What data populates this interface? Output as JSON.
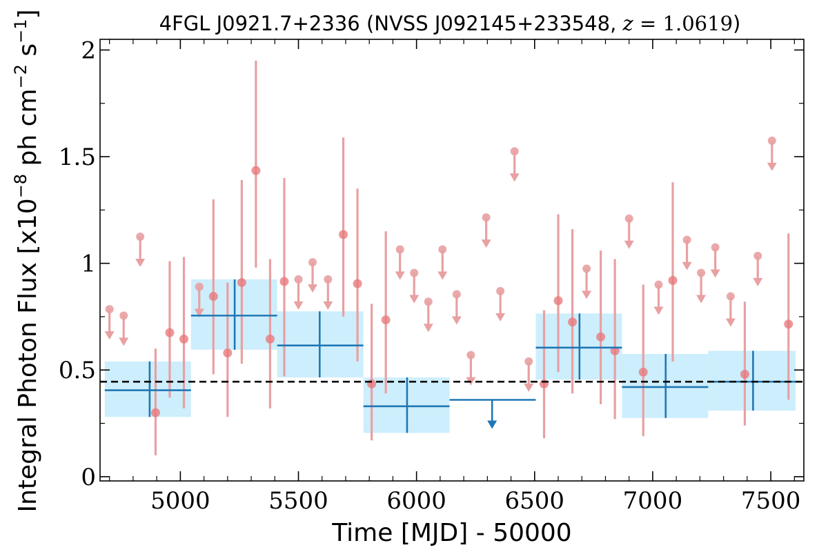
{
  "chart_data": {
    "type": "scatter",
    "title": {
      "main": "4FGL J0921.7+2336 (NVSS J092145+233548, ",
      "z_var": "z",
      "z_eq": " = 1.0619",
      "close": ")"
    },
    "xlabel": "Time [MJD] - 50000",
    "ylabel": {
      "prefix": "Integral Photon Flux [x10",
      "exp1": "−8",
      "mid": " ph cm",
      "exp2": "−2",
      "mid2": " s",
      "exp3": "−1",
      "suffix": "]"
    },
    "xlim": [
      4660,
      7640
    ],
    "ylim": [
      -0.02,
      2.05
    ],
    "x_ticks": [
      5000,
      5500,
      6000,
      6500,
      7000,
      7500
    ],
    "x_tick_labels": [
      "5000",
      "5500",
      "6000",
      "6500",
      "7000",
      "7500"
    ],
    "y_ticks": [
      0,
      0.5,
      1,
      1.5,
      2
    ],
    "y_tick_labels": [
      "0",
      "0.5",
      "1",
      "1.5",
      "2"
    ],
    "grid": false,
    "legend": "none",
    "mean_flux": 0.445,
    "colors": {
      "fine": "#e8787b",
      "fine_error": "#e8a0a2",
      "coarse": "#1f77b4",
      "coarse_band": "#cdeefc",
      "mean_line": "#000000"
    },
    "fine_bins": {
      "detections": [
        {
          "x": 4895,
          "y": 0.3,
          "lo": 0.1,
          "hi": 0.6
        },
        {
          "x": 4955,
          "y": 0.675,
          "lo": 0.37,
          "hi": 1.01
        },
        {
          "x": 5015,
          "y": 0.645,
          "lo": 0.32,
          "hi": 1.03
        },
        {
          "x": 5140,
          "y": 0.845,
          "lo": 0.48,
          "hi": 1.3
        },
        {
          "x": 5200,
          "y": 0.58,
          "lo": 0.28,
          "hi": 0.91
        },
        {
          "x": 5260,
          "y": 0.91,
          "lo": 0.53,
          "hi": 1.39
        },
        {
          "x": 5320,
          "y": 1.435,
          "lo": 0.98,
          "hi": 1.95
        },
        {
          "x": 5380,
          "y": 0.645,
          "lo": 0.32,
          "hi": 1.02
        },
        {
          "x": 5440,
          "y": 0.915,
          "lo": 0.47,
          "hi": 1.4
        },
        {
          "x": 5690,
          "y": 1.135,
          "lo": 0.75,
          "hi": 1.59
        },
        {
          "x": 5750,
          "y": 0.905,
          "lo": 0.54,
          "hi": 1.35
        },
        {
          "x": 5810,
          "y": 0.435,
          "lo": 0.17,
          "hi": 0.81
        },
        {
          "x": 5870,
          "y": 0.735,
          "lo": 0.39,
          "hi": 1.15
        },
        {
          "x": 6540,
          "y": 0.435,
          "lo": 0.18,
          "hi": 0.78
        },
        {
          "x": 6600,
          "y": 0.825,
          "lo": 0.49,
          "hi": 1.23
        },
        {
          "x": 6660,
          "y": 0.725,
          "lo": 0.39,
          "hi": 1.16
        },
        {
          "x": 6780,
          "y": 0.655,
          "lo": 0.34,
          "hi": 1.06
        },
        {
          "x": 6840,
          "y": 0.59,
          "lo": 0.27,
          "hi": 1.02
        },
        {
          "x": 6960,
          "y": 0.49,
          "lo": 0.19,
          "hi": 0.9
        },
        {
          "x": 7085,
          "y": 0.92,
          "lo": 0.54,
          "hi": 1.38
        },
        {
          "x": 7390,
          "y": 0.48,
          "lo": 0.24,
          "hi": 0.82
        },
        {
          "x": 7575,
          "y": 0.715,
          "lo": 0.36,
          "hi": 1.14
        }
      ],
      "upper_limits": [
        {
          "x": 4700,
          "y": 0.785
        },
        {
          "x": 4760,
          "y": 0.755
        },
        {
          "x": 4830,
          "y": 1.125
        },
        {
          "x": 5080,
          "y": 0.89
        },
        {
          "x": 5500,
          "y": 0.925
        },
        {
          "x": 5560,
          "y": 1.005
        },
        {
          "x": 5625,
          "y": 0.925
        },
        {
          "x": 5930,
          "y": 1.065
        },
        {
          "x": 5990,
          "y": 0.955
        },
        {
          "x": 6050,
          "y": 0.82
        },
        {
          "x": 6110,
          "y": 1.065
        },
        {
          "x": 6170,
          "y": 0.855
        },
        {
          "x": 6230,
          "y": 0.57
        },
        {
          "x": 6295,
          "y": 1.215
        },
        {
          "x": 6355,
          "y": 0.87
        },
        {
          "x": 6415,
          "y": 1.525
        },
        {
          "x": 6475,
          "y": 0.54
        },
        {
          "x": 6720,
          "y": 0.975
        },
        {
          "x": 6900,
          "y": 1.21
        },
        {
          "x": 7025,
          "y": 0.9
        },
        {
          "x": 7145,
          "y": 1.11
        },
        {
          "x": 7205,
          "y": 0.955
        },
        {
          "x": 7265,
          "y": 1.075
        },
        {
          "x": 7330,
          "y": 0.845
        },
        {
          "x": 7445,
          "y": 1.035
        },
        {
          "x": 7505,
          "y": 1.575
        }
      ]
    },
    "coarse_bins": {
      "detections": [
        {
          "x": 4870,
          "x0": 4680,
          "x1": 5045,
          "y": 0.405,
          "lo": 0.28,
          "hi": 0.54
        },
        {
          "x": 5230,
          "x0": 5045,
          "x1": 5410,
          "y": 0.755,
          "lo": 0.595,
          "hi": 0.925
        },
        {
          "x": 5590,
          "x0": 5410,
          "x1": 5775,
          "y": 0.615,
          "lo": 0.465,
          "hi": 0.775
        },
        {
          "x": 5960,
          "x0": 5775,
          "x1": 6140,
          "y": 0.33,
          "lo": 0.205,
          "hi": 0.465
        },
        {
          "x": 6690,
          "x0": 6505,
          "x1": 6870,
          "y": 0.605,
          "lo": 0.455,
          "hi": 0.765
        },
        {
          "x": 7055,
          "x0": 6870,
          "x1": 7235,
          "y": 0.42,
          "lo": 0.275,
          "hi": 0.575
        },
        {
          "x": 7425,
          "x0": 7235,
          "x1": 7605,
          "y": 0.445,
          "lo": 0.31,
          "hi": 0.59
        }
      ],
      "upper_limits": [
        {
          "x": 6320,
          "x0": 6140,
          "x1": 6505,
          "y": 0.36
        }
      ]
    }
  }
}
